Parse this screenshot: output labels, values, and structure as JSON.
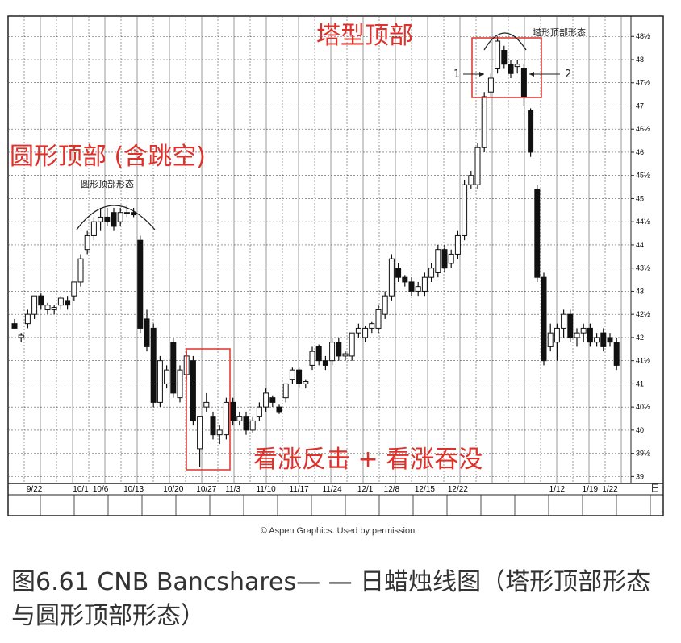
{
  "chart_data": {
    "type": "candlestick",
    "annotations": [
      "塔型顶部",
      "圆形顶部 (含跳空)",
      "看涨反击 + 看涨吞没",
      "塔形顶部形态",
      "圆形顶部形态",
      "1",
      "2"
    ],
    "xlabel": "日",
    "credit": "© Aspen Graphics. Used by permission.",
    "caption": "图6.61 CNB Bancshares— — 日蜡烛线图（塔形顶部形态与圆形顶部形态）",
    "categories": [
      null,
      null,
      null,
      "9/22",
      null,
      null,
      null,
      null,
      null,
      null,
      "10/1",
      null,
      null,
      "10/6",
      null,
      null,
      null,
      null,
      "10/13",
      null,
      null,
      null,
      null,
      null,
      "10/20",
      null,
      null,
      null,
      null,
      "10/27",
      null,
      null,
      null,
      "11/3",
      null,
      null,
      null,
      null,
      "11/10",
      null,
      null,
      null,
      null,
      "11/17",
      null,
      null,
      null,
      null,
      "11/24",
      null,
      null,
      null,
      null,
      "12/1",
      null,
      null,
      null,
      "12/8",
      null,
      null,
      null,
      null,
      "12/15",
      null,
      null,
      null,
      null,
      "12/22",
      null,
      null,
      null,
      null,
      null,
      null,
      null,
      null,
      null,
      null,
      null,
      null,
      null,
      null,
      "1/12",
      null,
      null,
      null,
      null,
      "1/19",
      null,
      null,
      "1/22",
      null
    ],
    "open": [
      42.3,
      42.0,
      42.3,
      42.5,
      42.9,
      42.6,
      42.6,
      42.7,
      42.8,
      42.9,
      43.2,
      43.9,
      44.2,
      44.5,
      44.6,
      44.7,
      44.5,
      44.7,
      44.7,
      44.1,
      42.4,
      42.2,
      40.6,
      41.0,
      41.9,
      40.7,
      41.2,
      41.5,
      39.6,
      40.5,
      40.3,
      39.9,
      39.9,
      40.6,
      40.2,
      40.3,
      40.0,
      40.3,
      40.5,
      40.7,
      40.5,
      40.7,
      41.1,
      41.3,
      41.0,
      41.4,
      41.8,
      41.5,
      41.5,
      41.9,
      41.6,
      41.6,
      42.1,
      42.0,
      42.2,
      42.2,
      42.5,
      42.9,
      43.5,
      43.3,
      43.2,
      43.0,
      43.0,
      43.3,
      43.4,
      43.9,
      43.6,
      43.8,
      44.2,
      45.3,
      45.3,
      46.1,
      47.3,
      47.8,
      48.2,
      47.9,
      47.85,
      47.8,
      46.9,
      45.2,
      43.3,
      41.8,
      41.9,
      42.2,
      42.5,
      42.0,
      42.1,
      42.2,
      41.9,
      42.1,
      42.0,
      41.9
    ],
    "high": [
      42.4,
      42.1,
      42.6,
      42.9,
      42.95,
      42.75,
      42.7,
      42.9,
      42.9,
      43.2,
      43.8,
      44.3,
      44.6,
      44.8,
      44.8,
      44.8,
      44.8,
      44.85,
      44.8,
      44.2,
      42.6,
      42.3,
      41.6,
      41.4,
      42.0,
      41.4,
      41.7,
      41.6,
      40.3,
      40.8,
      40.4,
      40.1,
      40.7,
      40.7,
      40.4,
      40.4,
      40.3,
      40.6,
      40.9,
      40.75,
      40.55,
      41.0,
      41.35,
      41.35,
      41.1,
      41.8,
      41.85,
      41.6,
      42.0,
      42.0,
      41.7,
      42.1,
      42.3,
      42.25,
      42.35,
      42.7,
      43.0,
      43.8,
      43.6,
      43.35,
      43.3,
      43.2,
      43.4,
      43.6,
      44.0,
      44.0,
      43.9,
      44.3,
      45.4,
      45.6,
      46.2,
      47.3,
      47.7,
      48.5,
      48.3,
      48.0,
      48.0,
      47.9,
      46.95,
      45.3,
      43.4,
      42.3,
      42.3,
      42.6,
      42.6,
      42.2,
      42.3,
      42.3,
      42.1,
      42.2,
      42.1,
      42.0
    ],
    "low": [
      42.2,
      41.9,
      42.2,
      42.4,
      42.6,
      42.5,
      42.5,
      42.6,
      42.6,
      42.8,
      43.1,
      43.8,
      44.1,
      44.3,
      44.4,
      44.3,
      44.4,
      44.6,
      44.6,
      42.1,
      41.7,
      40.5,
      40.5,
      40.9,
      40.7,
      40.6,
      41.1,
      40.1,
      39.2,
      40.4,
      39.8,
      39.7,
      39.8,
      40.1,
      40.1,
      39.9,
      39.95,
      40.2,
      40.4,
      40.5,
      40.35,
      40.6,
      41.0,
      40.9,
      40.9,
      41.3,
      41.4,
      41.3,
      41.4,
      41.5,
      41.5,
      41.5,
      42.0,
      41.9,
      42.1,
      42.1,
      42.4,
      42.8,
      43.2,
      43.1,
      42.9,
      42.9,
      42.9,
      43.2,
      43.3,
      43.4,
      43.5,
      43.7,
      44.1,
      45.2,
      45.2,
      46.0,
      47.2,
      47.7,
      47.8,
      47.6,
      47.7,
      47.0,
      45.9,
      43.2,
      41.4,
      41.7,
      41.5,
      42.0,
      41.9,
      41.8,
      41.9,
      41.8,
      41.8,
      41.7,
      41.8,
      41.3
    ],
    "close": [
      42.2,
      42.05,
      42.5,
      42.9,
      42.7,
      42.7,
      42.65,
      42.85,
      42.7,
      43.2,
      43.7,
      44.2,
      44.5,
      44.6,
      44.5,
      44.4,
      44.7,
      44.7,
      44.65,
      42.2,
      41.8,
      40.6,
      41.5,
      41.3,
      40.8,
      41.3,
      41.6,
      40.2,
      40.3,
      40.6,
      39.9,
      40.0,
      40.6,
      40.2,
      40.3,
      40.0,
      40.2,
      40.5,
      40.8,
      40.6,
      40.4,
      41.0,
      41.3,
      41.0,
      41.05,
      41.7,
      41.5,
      41.4,
      41.9,
      41.6,
      41.65,
      42.1,
      42.2,
      42.2,
      42.3,
      42.6,
      42.9,
      43.7,
      43.3,
      43.2,
      43.0,
      43.1,
      43.3,
      43.5,
      43.9,
      43.5,
      43.8,
      44.2,
      45.3,
      45.5,
      46.1,
      47.2,
      47.6,
      48.4,
      47.9,
      47.7,
      47.9,
      47.2,
      46.0,
      43.3,
      41.5,
      42.1,
      42.2,
      42.5,
      42.0,
      42.1,
      42.2,
      41.9,
      42.0,
      41.8,
      41.9,
      41.4
    ],
    "ylim": [
      38.85,
      48.8
    ],
    "yticks": [
      39,
      {
        "value": 39.5,
        "label": "39½"
      },
      40,
      {
        "value": 40.5,
        "label": "40½"
      },
      41,
      {
        "value": 41.5,
        "label": "41½"
      },
      42,
      {
        "value": 42.5,
        "label": "42½"
      },
      43,
      {
        "value": 43.5,
        "label": "43½"
      },
      44,
      {
        "value": 44.5,
        "label": "44½"
      },
      45,
      {
        "value": 45.5,
        "label": "45½"
      },
      46,
      {
        "value": 46.5,
        "label": "46½"
      },
      47,
      {
        "value": 47.5,
        "label": "47½"
      },
      48,
      {
        "value": 48.5,
        "label": "48½"
      }
    ],
    "grid": true
  }
}
